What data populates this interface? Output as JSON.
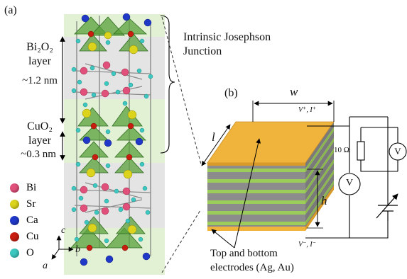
{
  "panel_a": {
    "label": "(a)",
    "layer_bio": {
      "line1": "Bi₂O₂",
      "line2": "layer",
      "thickness": "~1.2 nm"
    },
    "layer_cuo": {
      "line1": "CuO₂",
      "line2": "layer",
      "thickness": "~0.3 nm"
    },
    "ijj_line1": "Intrinsic Josephson",
    "ijj_line2": "Junction",
    "axes": {
      "a": "a",
      "b": "b",
      "c": "c"
    },
    "legend": [
      {
        "label": "Bi",
        "color": "#e0507a"
      },
      {
        "label": "Sr",
        "color": "#dcd41c"
      },
      {
        "label": "Ca",
        "color": "#2038c8"
      },
      {
        "label": "Cu",
        "color": "#c81e10"
      },
      {
        "label": "O",
        "color": "#3cc8c0"
      }
    ]
  },
  "panel_b": {
    "label": "(b)",
    "w": "w",
    "l": "l",
    "h": "h",
    "top_terminal": "V⁺, I⁺",
    "bottom_terminal": "V⁻, I⁻",
    "resistor": "10 Ω",
    "voltmeter": "V",
    "electrodes_line1": "Top and bottom",
    "electrodes_line2": "electrodes (Ag, Au)",
    "colors": {
      "gold": "#f0b43c",
      "green": "#9ccc5a",
      "gray": "#8c8c8c"
    }
  }
}
